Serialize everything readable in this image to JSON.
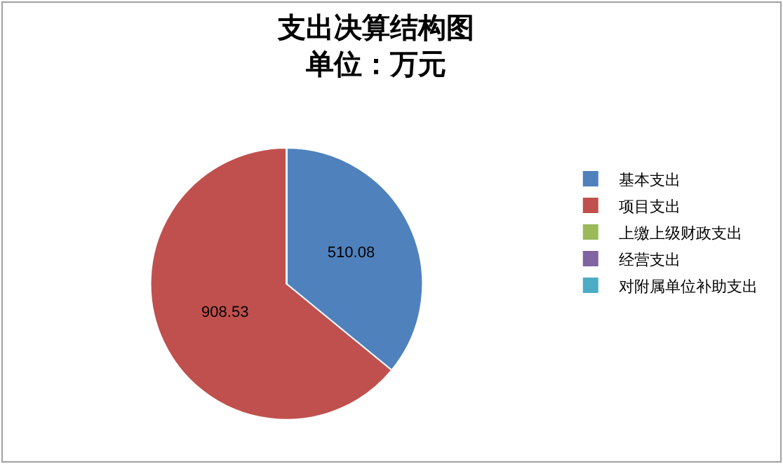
{
  "chart_data": {
    "type": "pie",
    "title": "支出决算结构图",
    "subtitle": "单位：万元",
    "categories": [
      "基本支出",
      "项目支出",
      "上缴上级财政支出",
      "经营支出",
      "对附属单位补助支出"
    ],
    "values": [
      510.08,
      908.53,
      0,
      0,
      0
    ],
    "colors": [
      "#4f81bd",
      "#c0504d",
      "#9bbb59",
      "#8064a2",
      "#4bacc6"
    ],
    "value_labels": [
      "510.08",
      "908.53",
      null,
      null,
      null
    ],
    "legend": "right"
  }
}
